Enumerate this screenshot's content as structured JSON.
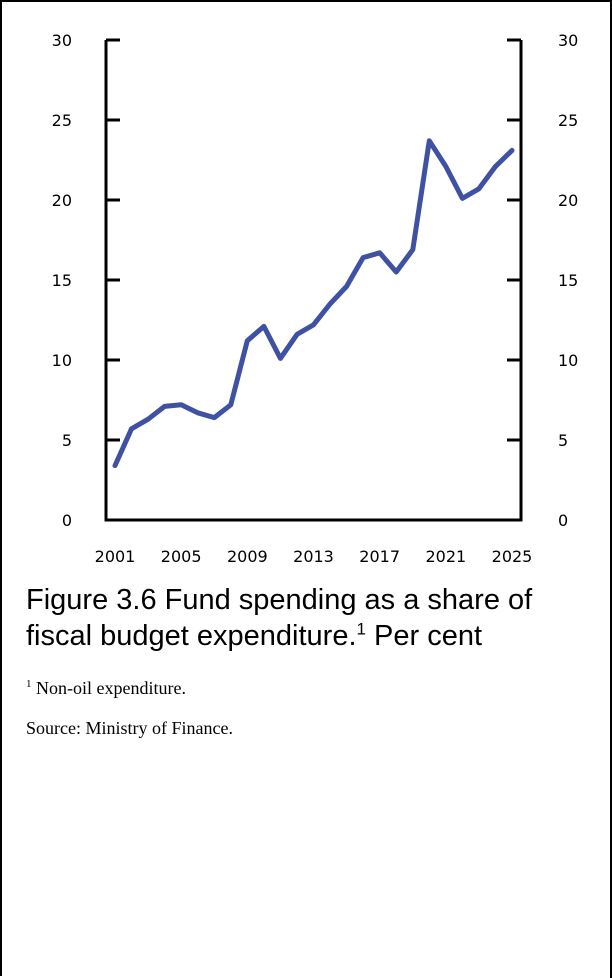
{
  "chart_data": {
    "type": "line",
    "title": "",
    "xlabel": "",
    "ylabel": "",
    "ylim": [
      0,
      30
    ],
    "xlim": [
      2001,
      2025
    ],
    "y_ticks": [
      "0",
      "5",
      "10",
      "15",
      "20",
      "25",
      "30"
    ],
    "y_ticks_right": [
      "0",
      "5",
      "10",
      "15",
      "20",
      "25",
      "30"
    ],
    "x_ticks": [
      "2001",
      "2005",
      "2009",
      "2013",
      "2017",
      "2021",
      "2025"
    ],
    "grid": false,
    "legend": "none",
    "series": [
      {
        "color": "#3f51a3",
        "x": [
          2001,
          2002,
          2003,
          2004,
          2005,
          2006,
          2007,
          2008,
          2009,
          2010,
          2011,
          2012,
          2013,
          2014,
          2015,
          2016,
          2017,
          2018,
          2019,
          2020,
          2021,
          2022,
          2023,
          2024,
          2025
        ],
        "values": [
          3.4,
          5.7,
          6.3,
          7.1,
          7.2,
          6.7,
          6.4,
          7.2,
          11.2,
          12.1,
          10.1,
          11.6,
          12.2,
          13.5,
          14.6,
          16.4,
          16.7,
          15.5,
          16.9,
          23.7,
          22.1,
          20.1,
          20.7,
          22.1,
          23.1
        ]
      }
    ]
  },
  "caption": {
    "title": "Figure 3.6 Fund spending as a share of fiscal budget expenditure.",
    "title_sup": "1",
    "title_suffix": " Per cent",
    "footnote_sup": "1",
    "footnote_text": " Non-oil expenditure.",
    "source": "Source: Ministry of Finance."
  }
}
